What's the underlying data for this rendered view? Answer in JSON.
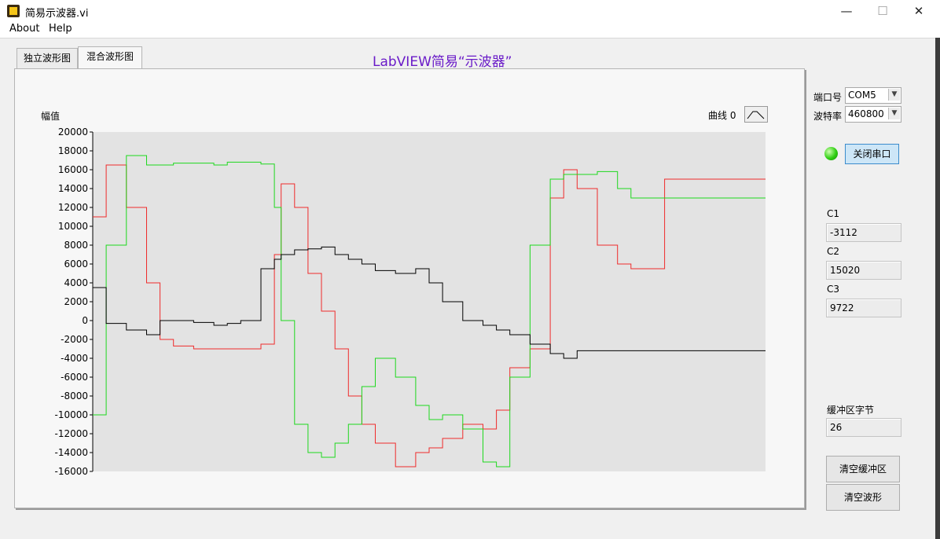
{
  "window": {
    "title": "简易示波器.vi",
    "minimize": "—",
    "maximize": "☐",
    "close": "✕"
  },
  "menu": {
    "about": "About",
    "help": "Help"
  },
  "tabs": [
    {
      "label": "独立波形图"
    },
    {
      "label": "混合波形图"
    }
  ],
  "heading": "LabVIEW简易“示波器”",
  "controls": {
    "port_label": "端口号",
    "port_value": "COM5",
    "baud_label": "波特率",
    "baud_value": "460800",
    "close_port_button": "关闭串口",
    "c1_label": "C1",
    "c1_value": "-3112",
    "c2_label": "C2",
    "c2_value": "15020",
    "c3_label": "C3",
    "c3_value": "9722",
    "buffer_label": "缓冲区字节",
    "buffer_value": "26",
    "clear_buffer_button": "清空缓冲区",
    "clear_wave_button": "清空波形"
  },
  "colors": {
    "plot_bg": "#e3e3e3",
    "red": "#ef2b2b",
    "green": "#1ed81e",
    "black": "#000000",
    "heading": "#6a1bc8"
  },
  "chart_data": {
    "type": "line",
    "ylabel": "幅值",
    "ylim": [
      -16000,
      20000
    ],
    "yticks": [
      "20000",
      "18000",
      "16000",
      "14000",
      "12000",
      "10000",
      "8000",
      "6000",
      "4000",
      "2000",
      "0",
      "-2000",
      "-4000",
      "-6000",
      "-8000",
      "-10000",
      "-12000",
      "-14000",
      "-16000"
    ],
    "legend": {
      "label": "曲线 0"
    },
    "x": [
      0,
      0.02,
      0.05,
      0.08,
      0.1,
      0.12,
      0.15,
      0.18,
      0.2,
      0.22,
      0.25,
      0.27,
      0.28,
      0.3,
      0.32,
      0.34,
      0.36,
      0.38,
      0.4,
      0.42,
      0.45,
      0.48,
      0.5,
      0.52,
      0.55,
      0.58,
      0.6,
      0.62,
      0.65,
      0.68,
      0.7,
      0.72,
      0.75,
      0.78,
      0.8,
      0.82,
      0.85,
      0.88,
      0.9,
      0.92,
      0.94,
      0.96,
      0.98,
      1.0
    ],
    "series": [
      {
        "color": "#ef2b2b",
        "values": [
          11000,
          16500,
          12000,
          4000,
          -2000,
          -2700,
          -3000,
          -3000,
          -3000,
          -3000,
          -2500,
          7000,
          14500,
          12000,
          5000,
          1000,
          -3000,
          -8000,
          -11000,
          -13000,
          -15500,
          -14000,
          -13500,
          -12500,
          -11000,
          -11500,
          -9500,
          -5000,
          -3000,
          13000,
          16000,
          14000,
          8000,
          6000,
          5500,
          5500,
          15000,
          15000,
          15000,
          15000,
          15000,
          15000,
          15000,
          15000
        ]
      },
      {
        "color": "#1ed81e",
        "values": [
          -10000,
          8000,
          17500,
          16500,
          16500,
          16700,
          16700,
          16500,
          16800,
          16800,
          16600,
          12000,
          0,
          -11000,
          -14000,
          -14500,
          -13000,
          -11000,
          -7000,
          -4000,
          -6000,
          -9000,
          -10500,
          -10000,
          -11500,
          -15000,
          -15500,
          -6000,
          8000,
          15000,
          15500,
          15500,
          15800,
          14000,
          13000,
          13000,
          13000,
          13000,
          13000,
          13000,
          13000,
          13000,
          13000,
          13000
        ]
      },
      {
        "color": "#000000",
        "values": [
          3500,
          -300,
          -1000,
          -1500,
          0,
          0,
          -200,
          -500,
          -300,
          0,
          5500,
          6500,
          7000,
          7500,
          7600,
          7800,
          7000,
          6500,
          6000,
          5300,
          5000,
          5500,
          4000,
          2000,
          0,
          -500,
          -1000,
          -1500,
          -2500,
          -3500,
          -4000,
          -3200,
          -3200,
          -3200,
          -3200,
          -3200,
          -3200,
          -3200,
          -3200,
          -3200,
          -3200,
          -3200,
          -3200,
          -3200
        ]
      }
    ]
  }
}
